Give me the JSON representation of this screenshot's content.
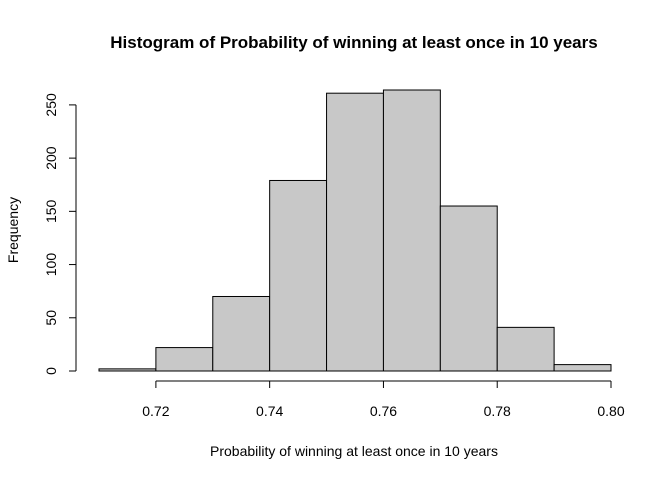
{
  "chart_data": {
    "type": "bar",
    "title": "Histogram of Probability of winning at least once in 10 years",
    "xlabel": "Probability of winning at least once in 10 years",
    "ylabel": "Frequency",
    "bins": [
      {
        "start": 0.71,
        "end": 0.72,
        "count": 2
      },
      {
        "start": 0.72,
        "end": 0.73,
        "count": 22
      },
      {
        "start": 0.73,
        "end": 0.74,
        "count": 70
      },
      {
        "start": 0.74,
        "end": 0.75,
        "count": 179
      },
      {
        "start": 0.75,
        "end": 0.76,
        "count": 261
      },
      {
        "start": 0.76,
        "end": 0.77,
        "count": 264
      },
      {
        "start": 0.77,
        "end": 0.78,
        "count": 155
      },
      {
        "start": 0.78,
        "end": 0.79,
        "count": 41
      },
      {
        "start": 0.79,
        "end": 0.8,
        "count": 6
      }
    ],
    "xlim": [
      0.71,
      0.8
    ],
    "ylim": [
      0,
      264
    ],
    "xticks": [
      0.72,
      0.74,
      0.76,
      0.78,
      0.8
    ],
    "xtick_labels": [
      "0.72",
      "0.74",
      "0.76",
      "0.78",
      "0.80"
    ],
    "yticks": [
      0,
      50,
      100,
      150,
      200,
      250
    ],
    "ytick_labels": [
      "0",
      "50",
      "100",
      "150",
      "200",
      "250"
    ],
    "colors": {
      "bar_fill": "#c8c8c8",
      "bar_stroke": "#000000"
    },
    "grid": false
  }
}
